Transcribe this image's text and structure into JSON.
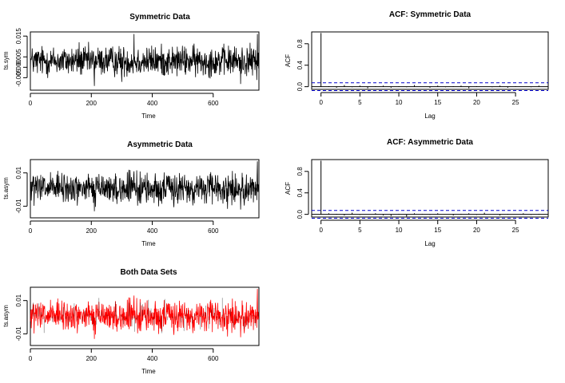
{
  "chart_data": [
    {
      "type": "line",
      "title": "Symmetric Data",
      "xlabel": "Time",
      "ylabel": "ts.sym",
      "xlim": [
        0,
        750
      ],
      "ylim": [
        -0.011,
        0.017
      ],
      "xticks": [
        0,
        200,
        400,
        600
      ],
      "xtick_labels": [
        "0",
        "200",
        "400",
        "600"
      ],
      "yticks": [
        -0.005,
        0.0,
        0.005,
        0.015
      ],
      "ytick_labels": [
        "-0.005",
        "0.000",
        "0.005",
        "0.015"
      ],
      "n": 750,
      "spikes": [
        [
          160,
          0.012
        ],
        [
          340,
          0.016
        ],
        [
          745,
          0.016
        ],
        [
          210,
          -0.009
        ],
        [
          690,
          -0.008
        ],
        [
          300,
          -0.007
        ]
      ],
      "color": "#000000",
      "grid": false
    },
    {
      "type": "bar",
      "title": "ACF: Symmetric Data",
      "xlabel": "Lag",
      "ylabel": "ACF",
      "xlim": [
        -1.2,
        29.2
      ],
      "ylim": [
        -0.05,
        1.02
      ],
      "xticks": [
        0,
        5,
        10,
        15,
        20,
        25
      ],
      "xtick_labels": [
        "0",
        "5",
        "10",
        "15",
        "20",
        "25"
      ],
      "yticks": [
        0.0,
        0.4,
        0.8
      ],
      "ytick_labels": [
        "0.0",
        "0.4",
        "0.8"
      ],
      "lags": [
        0,
        1,
        2,
        3,
        4,
        5,
        6,
        7,
        8,
        9,
        10,
        11,
        12,
        13,
        14,
        15,
        16,
        17,
        18,
        19,
        20,
        21,
        22,
        23,
        24,
        25,
        26,
        27,
        28
      ],
      "values": [
        1.0,
        0.01,
        -0.02,
        0.03,
        -0.01,
        0.02,
        -0.03,
        0.01,
        0.02,
        -0.02,
        0.01,
        -0.01,
        0.03,
        0.0,
        -0.02,
        0.02,
        -0.01,
        0.01,
        0.02,
        -0.03,
        0.01,
        0.0,
        -0.01,
        0.02,
        -0.02,
        0.01,
        0.0,
        -0.01,
        0.02
      ],
      "ci": 0.072,
      "ci_color": "#0000cc",
      "grid": false
    },
    {
      "type": "line",
      "title": "Asymmetric Data",
      "xlabel": "Time",
      "ylabel": "ts.asym",
      "xlim": [
        0,
        750
      ],
      "ylim": [
        -0.017,
        0.018
      ],
      "xticks": [
        0,
        200,
        400,
        600
      ],
      "xtick_labels": [
        "0",
        "200",
        "400",
        "600"
      ],
      "yticks": [
        -0.01,
        0.01
      ],
      "ytick_labels": [
        "-0.01",
        "0.01"
      ],
      "n": 750,
      "spikes": [
        [
          745,
          0.017
        ],
        [
          340,
          0.011
        ],
        [
          210,
          -0.013
        ],
        [
          690,
          -0.012
        ]
      ],
      "color": "#000000",
      "grid": false
    },
    {
      "type": "bar",
      "title": "ACF: Asymmetric Data",
      "xlabel": "Lag",
      "ylabel": "ACF",
      "xlim": [
        -1.2,
        29.2
      ],
      "ylim": [
        -0.05,
        1.02
      ],
      "xticks": [
        0,
        5,
        10,
        15,
        20,
        25
      ],
      "xtick_labels": [
        "0",
        "5",
        "10",
        "15",
        "20",
        "25"
      ],
      "yticks": [
        0.0,
        0.4,
        0.8
      ],
      "ytick_labels": [
        "0.0",
        "0.4",
        "0.8"
      ],
      "lags": [
        0,
        1,
        2,
        3,
        4,
        5,
        6,
        7,
        8,
        9,
        10,
        11,
        12,
        13,
        14,
        15,
        16,
        17,
        18,
        19,
        20,
        21,
        22,
        23,
        24,
        25,
        26,
        27,
        28
      ],
      "values": [
        1.0,
        0.02,
        0.01,
        -0.02,
        0.03,
        -0.01,
        0.0,
        0.02,
        -0.02,
        -0.03,
        0.01,
        -0.04,
        0.02,
        0.01,
        -0.01,
        0.02,
        0.0,
        -0.02,
        0.01,
        0.02,
        -0.01,
        0.03,
        0.0,
        -0.02,
        0.01,
        0.0,
        0.02,
        -0.01,
        0.01
      ],
      "ci": 0.072,
      "ci_color": "#0000cc",
      "grid": false
    },
    {
      "type": "line",
      "title": "Both Data Sets",
      "xlabel": "Time",
      "ylabel": "ts.asym",
      "xlim": [
        0,
        750
      ],
      "ylim": [
        -0.017,
        0.018
      ],
      "xticks": [
        0,
        200,
        400,
        600
      ],
      "xtick_labels": [
        "0",
        "200",
        "400",
        "600"
      ],
      "yticks": [
        -0.01,
        0.01
      ],
      "ytick_labels": [
        "-0.01",
        "0.01"
      ],
      "n": 750,
      "spikes": [
        [
          745,
          0.017
        ],
        [
          340,
          0.013
        ],
        [
          210,
          -0.013
        ],
        [
          690,
          -0.012
        ]
      ],
      "color": "#ff0000",
      "overlay_color": "#000000",
      "grid": false
    }
  ]
}
